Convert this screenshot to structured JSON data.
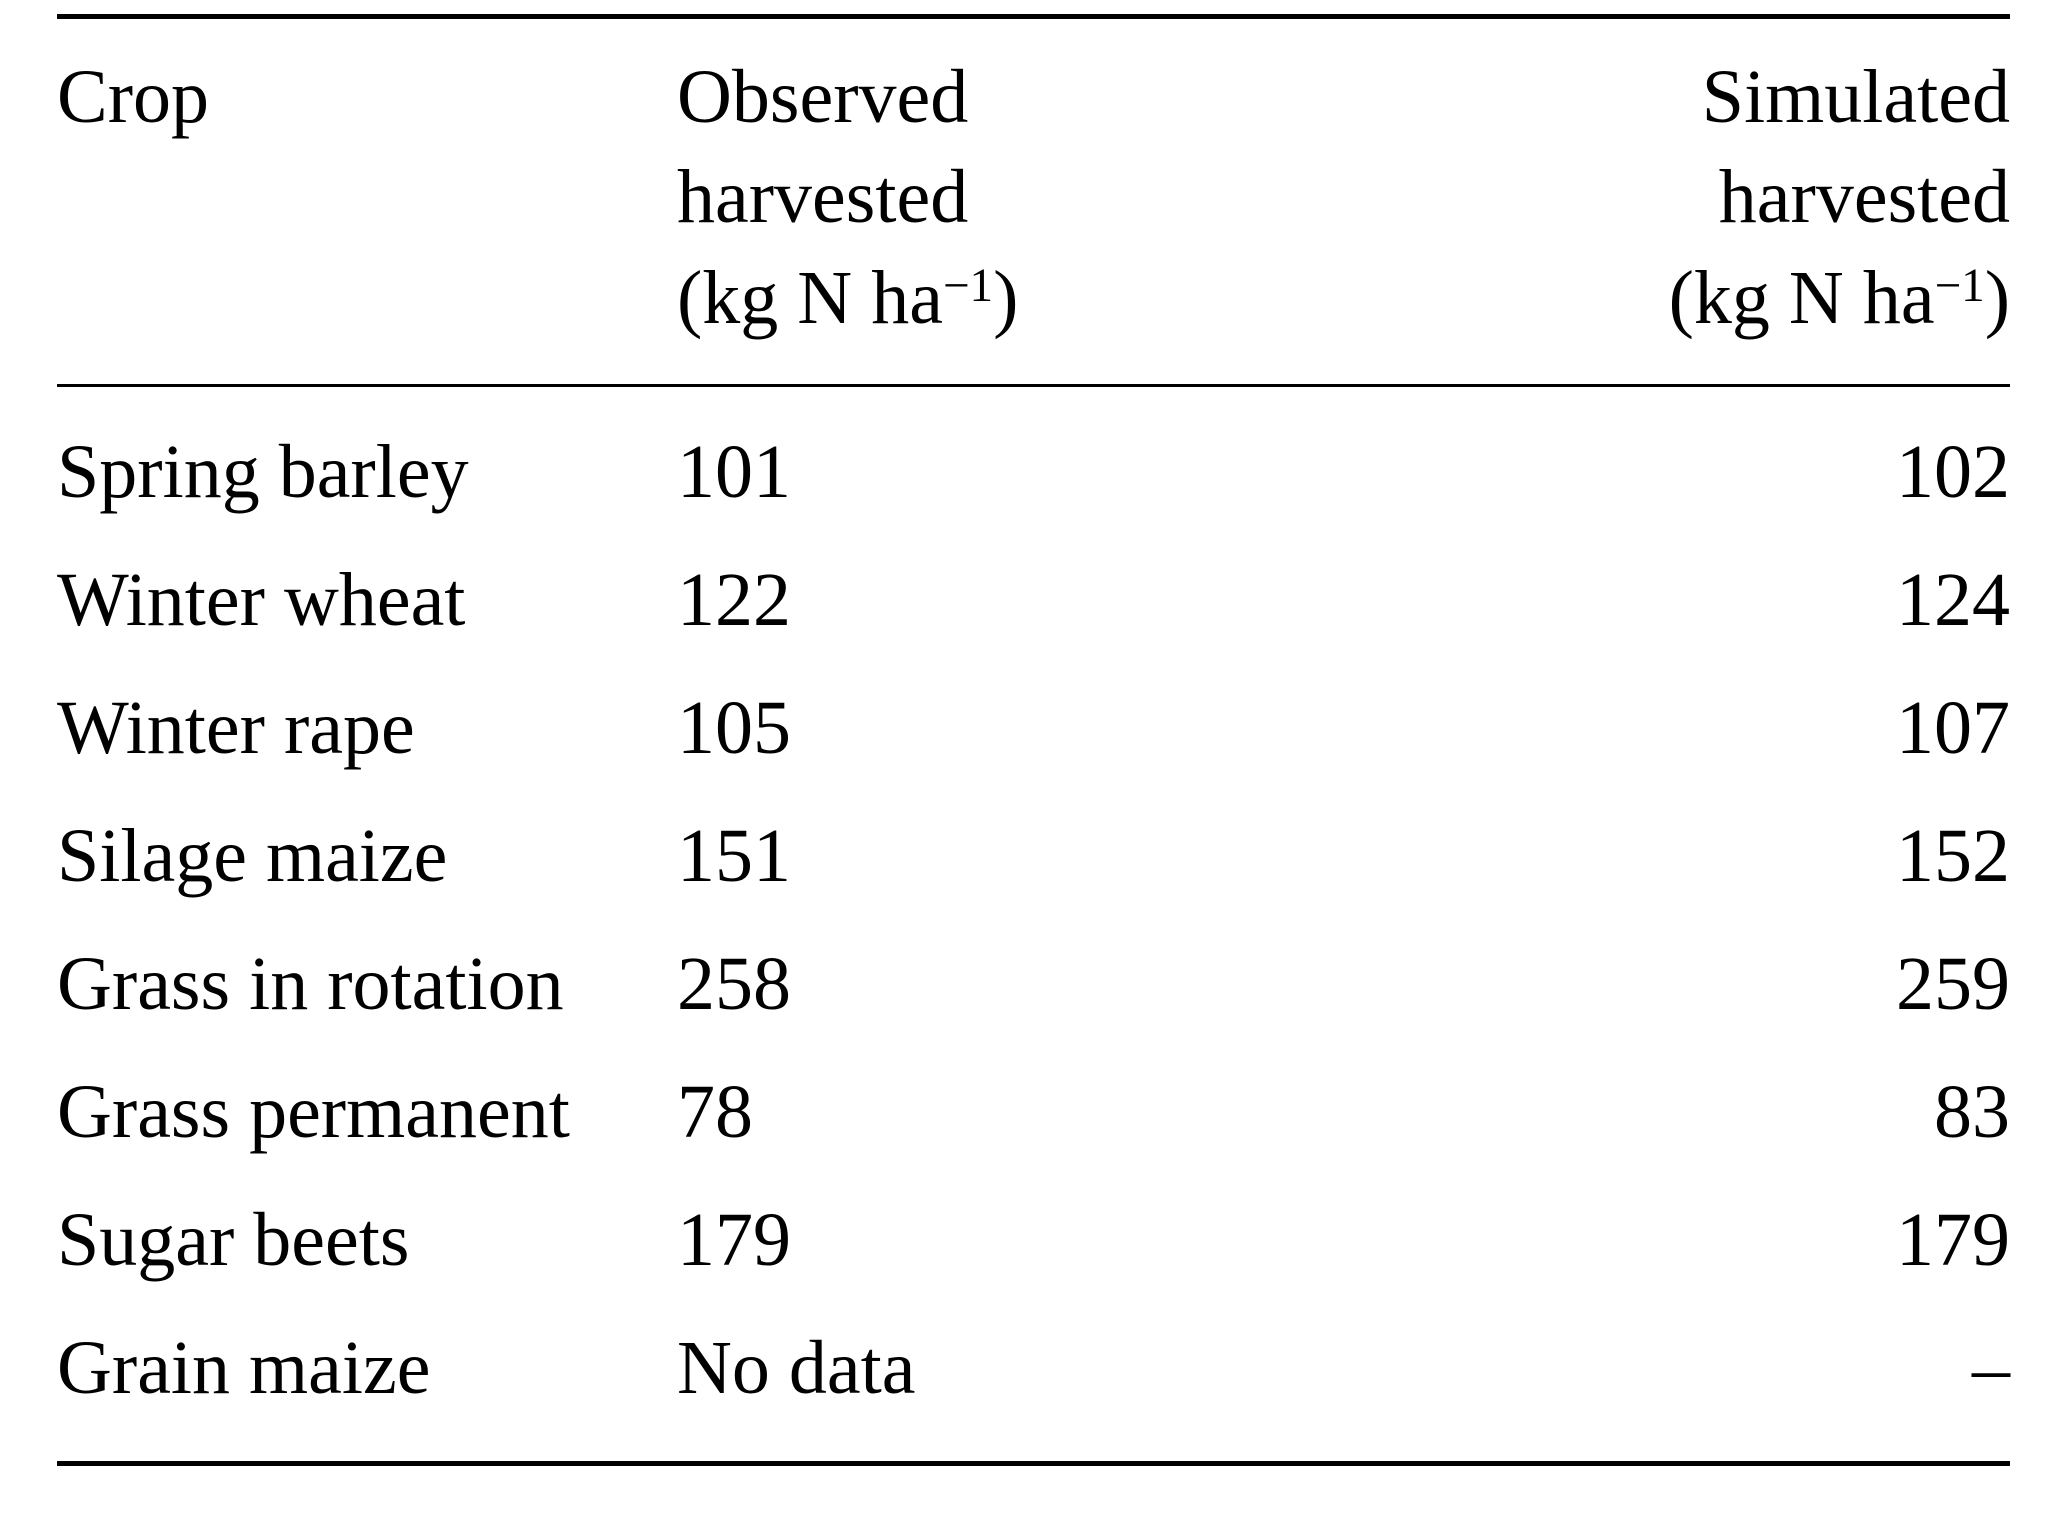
{
  "page": {
    "background": "#ffffff",
    "text_color": "#000000",
    "rule_color": "#000000"
  },
  "table": {
    "header": {
      "col1": "Crop",
      "col2_line1": "Observed",
      "col2_line2": "harvested",
      "col3_line1": "Simulated",
      "col3_line2": "harvested",
      "unit_prefix": "(kg N ha",
      "unit_sup": "−1",
      "unit_suffix": ")"
    },
    "rows": [
      {
        "crop": "Spring barley",
        "observed": "101",
        "simulated": "102"
      },
      {
        "crop": "Winter wheat",
        "observed": "122",
        "simulated": "124"
      },
      {
        "crop": "Winter rape",
        "observed": "105",
        "simulated": "107"
      },
      {
        "crop": "Silage maize",
        "observed": "151",
        "simulated": "152"
      },
      {
        "crop": "Grass in rotation",
        "observed": "258",
        "simulated": "259"
      },
      {
        "crop": "Grass permanent",
        "observed": "78",
        "simulated": "83"
      },
      {
        "crop": "Sugar beets",
        "observed": "179",
        "simulated": "179"
      },
      {
        "crop": "Grain maize",
        "observed": "No data",
        "simulated": "–"
      }
    ]
  }
}
